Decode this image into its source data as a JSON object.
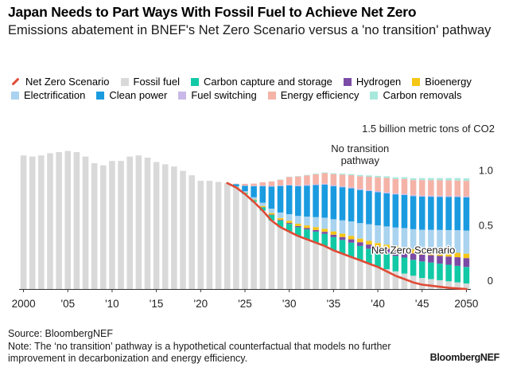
{
  "title": "Japan Needs to Part Ways With Fossil Fuel to Achieve Net Zero",
  "subtitle": "Emissions abatement in BNEF's Net Zero Scenario versus a 'no transition' pathway",
  "legend": [
    {
      "label": "Net Zero Scenario",
      "color": "#e04b36",
      "kind": "line",
      "name": "legend-net-zero-scenario"
    },
    {
      "label": "Fossil fuel",
      "color": "#d9d9d9",
      "kind": "box",
      "name": "legend-fossil-fuel"
    },
    {
      "label": "Carbon capture and storage",
      "color": "#12c9a6",
      "kind": "box",
      "name": "legend-carbon-capture-and-storage"
    },
    {
      "label": "Hydrogen",
      "color": "#7b4ba6",
      "kind": "box",
      "name": "legend-hydrogen"
    },
    {
      "label": "Bioenergy",
      "color": "#f5c518",
      "kind": "box",
      "name": "legend-bioenergy"
    },
    {
      "label": "Electrification",
      "color": "#a9d3ef",
      "kind": "box",
      "name": "legend-electrification"
    },
    {
      "label": "Clean power",
      "color": "#1a9be0",
      "kind": "box",
      "name": "legend-clean-power"
    },
    {
      "label": "Fuel switching",
      "color": "#c9b8e8",
      "kind": "box",
      "name": "legend-fuel-switching"
    },
    {
      "label": "Energy efficiency",
      "color": "#f5b3a8",
      "kind": "box",
      "name": "legend-energy-efficiency"
    },
    {
      "label": "Carbon removals",
      "color": "#a8e8dc",
      "kind": "box",
      "name": "legend-carbon-removals"
    }
  ],
  "chart_data": {
    "type": "bar",
    "stacked": true,
    "ylabel": "1.5 billion metric tons of CO2",
    "ylim": [
      0,
      1.5
    ],
    "y_ticks": [
      {
        "value": 1.0,
        "label": "1.0"
      },
      {
        "value": 0.5,
        "label": "0.5"
      },
      {
        "value": 0,
        "label": "0"
      }
    ],
    "y_axis_side": "right",
    "x_ticks": [
      {
        "year": 2000,
        "label": "2000"
      },
      {
        "year": 2005,
        "label": "'05"
      },
      {
        "year": 2010,
        "label": "'10"
      },
      {
        "year": 2015,
        "label": "'15"
      },
      {
        "year": 2020,
        "label": "'20"
      },
      {
        "year": 2025,
        "label": "'25"
      },
      {
        "year": 2030,
        "label": "'30"
      },
      {
        "year": 2035,
        "label": "'35"
      },
      {
        "year": 2040,
        "label": "'40"
      },
      {
        "year": 2045,
        "label": "'45"
      },
      {
        "year": 2050,
        "label": "2050"
      }
    ],
    "years": [
      2000,
      2001,
      2002,
      2003,
      2004,
      2005,
      2006,
      2007,
      2008,
      2009,
      2010,
      2011,
      2012,
      2013,
      2014,
      2015,
      2016,
      2017,
      2018,
      2019,
      2020,
      2021,
      2022,
      2023,
      2024,
      2025,
      2026,
      2027,
      2028,
      2029,
      2030,
      2031,
      2032,
      2033,
      2034,
      2035,
      2036,
      2037,
      2038,
      2039,
      2040,
      2041,
      2042,
      2043,
      2044,
      2045,
      2046,
      2047,
      2048,
      2049,
      2050
    ],
    "series": [
      {
        "name": "Fossil fuel",
        "color": "#d9d9d9",
        "values": [
          1.21,
          1.2,
          1.21,
          1.23,
          1.24,
          1.25,
          1.24,
          1.2,
          1.14,
          1.12,
          1.16,
          1.16,
          1.2,
          1.21,
          1.19,
          1.15,
          1.13,
          1.11,
          1.07,
          1.03,
          0.98,
          0.98,
          0.97,
          0.96,
          0.92,
          0.86,
          0.79,
          0.71,
          0.62,
          0.56,
          0.52,
          0.48,
          0.45,
          0.42,
          0.39,
          0.35,
          0.32,
          0.29,
          0.26,
          0.23,
          0.2,
          0.18,
          0.16,
          0.14,
          0.12,
          0.1,
          0.09,
          0.08,
          0.07,
          0.06,
          0.05
        ]
      },
      {
        "name": "Carbon capture and storage",
        "color": "#12c9a6",
        "values": [
          0,
          0,
          0,
          0,
          0,
          0,
          0,
          0,
          0,
          0,
          0,
          0,
          0,
          0,
          0,
          0,
          0,
          0,
          0,
          0,
          0,
          0,
          0,
          0,
          0.005,
          0.01,
          0.015,
          0.03,
          0.05,
          0.06,
          0.07,
          0.08,
          0.09,
          0.1,
          0.11,
          0.12,
          0.125,
          0.13,
          0.13,
          0.135,
          0.14,
          0.14,
          0.14,
          0.145,
          0.145,
          0.15,
          0.15,
          0.15,
          0.15,
          0.15,
          0.15
        ]
      },
      {
        "name": "Hydrogen",
        "color": "#7b4ba6",
        "values": [
          0,
          0,
          0,
          0,
          0,
          0,
          0,
          0,
          0,
          0,
          0,
          0,
          0,
          0,
          0,
          0,
          0,
          0,
          0,
          0,
          0,
          0,
          0,
          0,
          0,
          0,
          0,
          0.002,
          0.004,
          0.006,
          0.008,
          0.01,
          0.012,
          0.015,
          0.018,
          0.022,
          0.026,
          0.03,
          0.034,
          0.038,
          0.042,
          0.046,
          0.05,
          0.054,
          0.058,
          0.062,
          0.066,
          0.07,
          0.074,
          0.078,
          0.08
        ]
      },
      {
        "name": "Bioenergy",
        "color": "#f5c518",
        "values": [
          0,
          0,
          0,
          0,
          0,
          0,
          0,
          0,
          0,
          0,
          0,
          0,
          0,
          0,
          0,
          0,
          0,
          0,
          0,
          0,
          0,
          0,
          0,
          0,
          0,
          0.003,
          0.006,
          0.01,
          0.014,
          0.017,
          0.02,
          0.022,
          0.024,
          0.026,
          0.028,
          0.03,
          0.031,
          0.032,
          0.033,
          0.034,
          0.035,
          0.036,
          0.037,
          0.038,
          0.039,
          0.04,
          0.04,
          0.04,
          0.04,
          0.04,
          0.04
        ]
      },
      {
        "name": "Electrification",
        "color": "#a9d3ef",
        "values": [
          0,
          0,
          0,
          0,
          0,
          0,
          0,
          0,
          0,
          0,
          0,
          0,
          0,
          0,
          0,
          0,
          0,
          0,
          0,
          0,
          0,
          0,
          0,
          0,
          0.005,
          0.012,
          0.02,
          0.03,
          0.04,
          0.05,
          0.06,
          0.07,
          0.08,
          0.09,
          0.1,
          0.11,
          0.12,
          0.13,
          0.14,
          0.15,
          0.16,
          0.165,
          0.17,
          0.175,
          0.18,
          0.185,
          0.19,
          0.195,
          0.2,
          0.205,
          0.21
        ]
      },
      {
        "name": "Clean power",
        "color": "#1a9be0",
        "values": [
          0,
          0,
          0,
          0,
          0,
          0,
          0,
          0,
          0,
          0,
          0,
          0,
          0,
          0,
          0,
          0,
          0,
          0,
          0,
          0,
          0,
          0,
          0,
          0,
          0.02,
          0.05,
          0.1,
          0.15,
          0.2,
          0.24,
          0.26,
          0.27,
          0.28,
          0.29,
          0.3,
          0.3,
          0.3,
          0.3,
          0.3,
          0.3,
          0.3,
          0.3,
          0.3,
          0.3,
          0.3,
          0.3,
          0.3,
          0.3,
          0.3,
          0.3,
          0.3
        ]
      },
      {
        "name": "Fuel switching",
        "color": "#c9b8e8",
        "values": [
          0,
          0,
          0,
          0,
          0,
          0,
          0,
          0,
          0,
          0,
          0,
          0,
          0,
          0,
          0,
          0,
          0,
          0,
          0,
          0,
          0,
          0,
          0,
          0,
          0,
          0.003,
          0.004,
          0.005,
          0.006,
          0.006,
          0.007,
          0.007,
          0.008,
          0.008,
          0.008,
          0.009,
          0.009,
          0.009,
          0.01,
          0.01,
          0.01,
          0.01,
          0.01,
          0.01,
          0.01,
          0.01,
          0.01,
          0.01,
          0.01,
          0.01,
          0.01
        ]
      },
      {
        "name": "Energy efficiency",
        "color": "#f5b3a8",
        "values": [
          0,
          0,
          0,
          0,
          0,
          0,
          0,
          0,
          0,
          0,
          0,
          0,
          0,
          0,
          0,
          0,
          0,
          0,
          0,
          0,
          0,
          0,
          0,
          0,
          0.004,
          0.015,
          0.02,
          0.03,
          0.04,
          0.05,
          0.07,
          0.08,
          0.085,
          0.09,
          0.095,
          0.1,
          0.105,
          0.11,
          0.115,
          0.12,
          0.125,
          0.13,
          0.13,
          0.135,
          0.135,
          0.14,
          0.14,
          0.14,
          0.14,
          0.14,
          0.14
        ]
      },
      {
        "name": "Carbon removals",
        "color": "#a8e8dc",
        "values": [
          0,
          0,
          0,
          0,
          0,
          0,
          0,
          0,
          0,
          0,
          0,
          0,
          0,
          0,
          0,
          0,
          0,
          0,
          0,
          0,
          0,
          0,
          0,
          0,
          0,
          0,
          0,
          0,
          0.001,
          0.002,
          0.003,
          0.004,
          0.005,
          0.006,
          0.007,
          0.008,
          0.009,
          0.01,
          0.011,
          0.012,
          0.013,
          0.014,
          0.015,
          0.016,
          0.017,
          0.018,
          0.019,
          0.02,
          0.021,
          0.022,
          0.023
        ]
      }
    ],
    "net_zero_line": {
      "name": "Net Zero Scenario",
      "color": "#e04b36",
      "years": [
        2023,
        2024,
        2025,
        2026,
        2027,
        2028,
        2029,
        2030,
        2031,
        2032,
        2033,
        2034,
        2035,
        2036,
        2037,
        2038,
        2039,
        2040,
        2041,
        2042,
        2043,
        2044,
        2045,
        2046,
        2047,
        2048,
        2049,
        2050
      ],
      "values": [
        0.96,
        0.92,
        0.86,
        0.79,
        0.71,
        0.62,
        0.56,
        0.52,
        0.48,
        0.45,
        0.42,
        0.39,
        0.35,
        0.32,
        0.29,
        0.26,
        0.23,
        0.2,
        0.16,
        0.12,
        0.09,
        0.06,
        0.04,
        0.03,
        0.02,
        0.01,
        0.005,
        0.0
      ]
    },
    "annotations": [
      {
        "text_lines": [
          "No transition",
          "pathway"
        ],
        "year": 2038,
        "value": 1.24
      },
      {
        "text": "Net Zero Scenario",
        "year": 2044,
        "value": 0.32
      }
    ]
  },
  "footer": {
    "source": "Source: BloombergNEF",
    "note": "Note: The ‘no transition’ pathway is a hypothetical counterfactual that models no further improvement in decarbonization and energy efficiency.",
    "brand": "BloombergNEF"
  }
}
